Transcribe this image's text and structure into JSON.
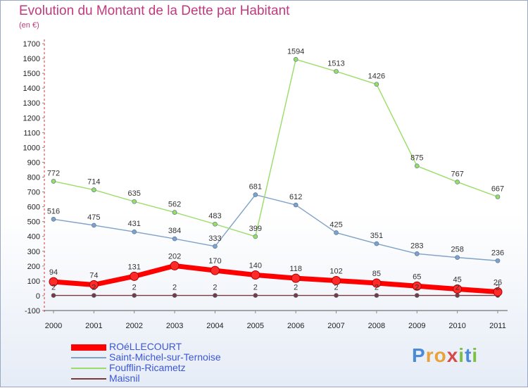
{
  "header": {
    "title": "Evolution du Montant de la Dette par Habitant",
    "subtitle": "(en €)"
  },
  "logo": {
    "text": "Proxiti",
    "letters": [
      {
        "ch": "P",
        "color": "#4a8ad6"
      },
      {
        "ch": "r",
        "color": "#e9a23b"
      },
      {
        "ch": "o",
        "color": "#e9a23b"
      },
      {
        "ch": "x",
        "color": "#d64a4a"
      },
      {
        "ch": "i",
        "color": "#7bc043"
      },
      {
        "ch": "t",
        "color": "#4a8ad6"
      },
      {
        "ch": "i",
        "color": "#7bc043"
      }
    ]
  },
  "chart_data": {
    "type": "line",
    "title": "Evolution du Montant de la Dette par Habitant",
    "subtitle": "(en €)",
    "xlabel": "",
    "ylabel": "",
    "x": [
      "2000",
      "2001",
      "2002",
      "2003",
      "2004",
      "2005",
      "2006",
      "2007",
      "2008",
      "2009",
      "2010",
      "2011"
    ],
    "ylim": [
      -100,
      1700
    ],
    "yticks": [
      -100,
      0,
      100,
      200,
      300,
      400,
      500,
      600,
      700,
      800,
      900,
      1000,
      1100,
      1200,
      1300,
      1400,
      1500,
      1600,
      1700
    ],
    "grid": false,
    "legend_position": "bottom-left",
    "series": [
      {
        "name": "ROéLLECOURT",
        "color": "#ff0000",
        "thick": true,
        "values": [
          94,
          74,
          131,
          202,
          170,
          140,
          118,
          102,
          85,
          65,
          45,
          26
        ]
      },
      {
        "name": "Saint-Michel-sur-Ternoise",
        "color": "#7fa2c8",
        "thick": false,
        "values": [
          516,
          475,
          431,
          384,
          333,
          681,
          612,
          425,
          351,
          283,
          258,
          236
        ]
      },
      {
        "name": "Foufflin-Ricametz",
        "color": "#99dd66",
        "thick": false,
        "values": [
          772,
          714,
          635,
          562,
          483,
          399,
          1594,
          1513,
          1426,
          875,
          767,
          667
        ]
      },
      {
        "name": "Maisnil",
        "color": "#7b3a3a",
        "thick": false,
        "values": [
          2,
          2,
          2,
          2,
          2,
          2,
          2,
          2,
          2,
          2,
          2,
          2
        ]
      }
    ]
  }
}
